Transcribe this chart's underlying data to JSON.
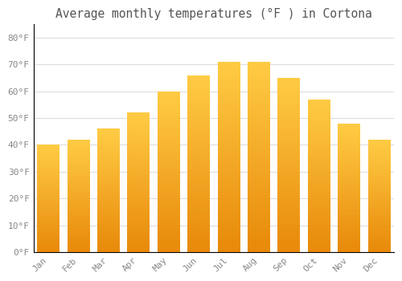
{
  "title": "Average monthly temperatures (°F ) in Cortona",
  "months": [
    "Jan",
    "Feb",
    "Mar",
    "Apr",
    "May",
    "Jun",
    "Jul",
    "Aug",
    "Sep",
    "Oct",
    "Nov",
    "Dec"
  ],
  "values": [
    40,
    42,
    46,
    52,
    60,
    66,
    71,
    71,
    65,
    57,
    48,
    42
  ],
  "bar_color_bottom": "#E8890A",
  "bar_color_top": "#FFCC44",
  "background_color": "#FFFFFF",
  "plot_bg_color": "#FFFFFF",
  "grid_color": "#DDDDDD",
  "ylim": [
    0,
    85
  ],
  "yticks": [
    0,
    10,
    20,
    30,
    40,
    50,
    60,
    70,
    80
  ],
  "ytick_labels": [
    "0°F",
    "10°F",
    "20°F",
    "30°F",
    "40°F",
    "50°F",
    "60°F",
    "70°F",
    "80°F"
  ],
  "title_fontsize": 10.5,
  "tick_fontsize": 8,
  "bar_width": 0.75,
  "figsize": [
    5.0,
    3.5
  ],
  "dpi": 100
}
